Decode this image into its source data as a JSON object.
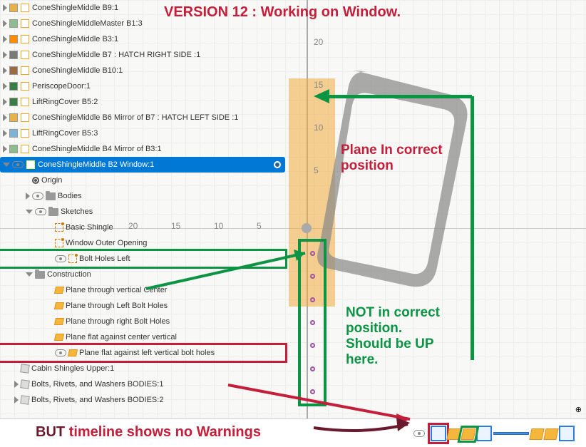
{
  "title": "VERSION 12 : Working on Window.",
  "tree": {
    "rows": [
      {
        "ind": 0,
        "tri": "r",
        "sw": "#e7b24a",
        "label": "ConeShingleMiddle B9:1"
      },
      {
        "ind": 0,
        "tri": "r",
        "sw": "#8fbc8f",
        "label": "ConeShingleMiddleMaster B1:3"
      },
      {
        "ind": 0,
        "tri": "r",
        "sw": "#ff8c00",
        "label": "ConeShingleMiddle B3:1"
      },
      {
        "ind": 0,
        "tri": "r",
        "sw": "#7a7a7a",
        "label": "ConeShingleMiddle B7 : HATCH RIGHT SIDE :1"
      },
      {
        "ind": 0,
        "tri": "r",
        "sw": "#9c6b3f",
        "label": "ConeShingleMiddle B10:1"
      },
      {
        "ind": 0,
        "tri": "r",
        "sw": "#3a7d44",
        "label": "PeriscopeDoor:1"
      },
      {
        "ind": 0,
        "tri": "r",
        "sw": "#3a7d44",
        "label": "LiftRingCover B5:2"
      },
      {
        "ind": 0,
        "tri": "r",
        "sw": "#e7b24a",
        "label": "ConeShingleMiddle B6 Mirror of B7 : HATCH LEFT SIDE :1"
      },
      {
        "ind": 0,
        "tri": "r",
        "sw": "#7fb3d5",
        "label": "LiftRingCover B5:3"
      },
      {
        "ind": 0,
        "tri": "r",
        "sw": "#8fbc8f",
        "label": "ConeShingleMiddle B4 Mirror of B3:1"
      }
    ],
    "selected": "ConeShingleMiddle B2 Window:1",
    "sub": [
      {
        "ind": 2,
        "icon": "dot",
        "label": "Origin"
      },
      {
        "ind": 2,
        "tri": "r",
        "eye": true,
        "icon": "folder",
        "label": "Bodies"
      },
      {
        "ind": 2,
        "tri": "d",
        "eye": true,
        "icon": "folder",
        "label": "Sketches"
      },
      {
        "ind": 4,
        "icon": "sketch",
        "label": "Basic Shingle"
      },
      {
        "ind": 4,
        "icon": "sketch",
        "label": "Window Outer Opening"
      },
      {
        "ind": 4,
        "eye": true,
        "icon": "sketch",
        "label": "Bolt Holes Left",
        "gbox": true
      },
      {
        "ind": 2,
        "tri": "d",
        "icon": "folder",
        "label": "Construction"
      },
      {
        "ind": 4,
        "icon": "plane",
        "label": "Plane  through vertical Center"
      },
      {
        "ind": 4,
        "icon": "plane",
        "label": "Plane through Left Bolt Holes"
      },
      {
        "ind": 4,
        "icon": "plane",
        "label": "Plane through right Bolt Holes"
      },
      {
        "ind": 4,
        "icon": "plane",
        "label": "Plane flat against center vertical"
      },
      {
        "ind": 4,
        "eye": true,
        "icon": "plane",
        "label": "Plane flat against left vertical bolt holes",
        "rbox": true
      },
      {
        "ind": 1,
        "icon": "body",
        "label": "Cabin Shingles Upper:1"
      },
      {
        "ind": 1,
        "tri": "r",
        "icon": "body",
        "label": "Bolts, Rivets, and Washers BODIES:1"
      },
      {
        "ind": 1,
        "tri": "r",
        "icon": "body",
        "label": "Bolts, Rivets, and Washers BODIES:2"
      }
    ]
  },
  "ruler": {
    "x": [
      {
        "v": "20",
        "l": 180
      },
      {
        "v": "15",
        "l": 240
      },
      {
        "v": "10",
        "l": 300
      },
      {
        "v": "5",
        "l": 360
      }
    ],
    "y": [
      {
        "v": "20",
        "t": 52
      },
      {
        "v": "15",
        "t": 112
      },
      {
        "v": "10",
        "t": 172
      },
      {
        "v": "5",
        "t": 232
      }
    ]
  },
  "anno": {
    "planeCorrect": "Plane in correct\nposition",
    "notCorrect": "NOT in correct\nposition.\nShould be UP\nhere.",
    "timeline": "BUT timeline shows no Warnings"
  },
  "colors": {
    "green": "#0b9444",
    "red": "#c41e3a",
    "maroon": "#6b1a2e",
    "orange": "#f5b63c"
  }
}
